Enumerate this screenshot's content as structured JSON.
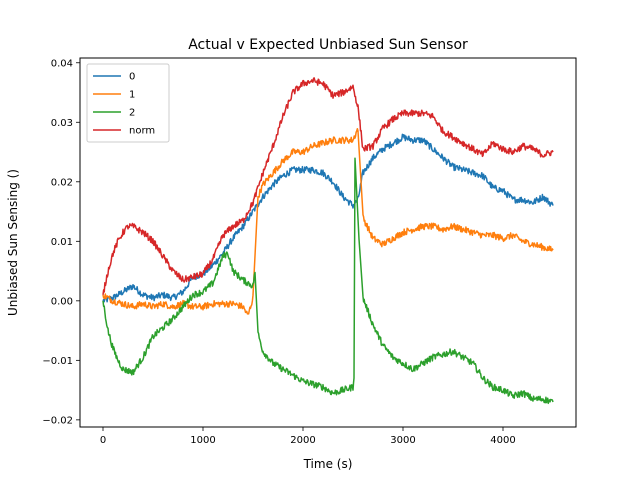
{
  "chart_data": {
    "type": "line",
    "title": "Actual v Expected Unbiased Sun Sensor",
    "xlabel": "Time (s)",
    "ylabel": "Unbiased Sun Sensing ()",
    "xlim": [
      -230,
      4730
    ],
    "ylim": [
      -0.0212,
      0.0408
    ],
    "xticks": [
      0,
      1000,
      2000,
      3000,
      4000
    ],
    "xtick_labels": [
      "0",
      "1000",
      "2000",
      "3000",
      "4000"
    ],
    "yticks": [
      -0.02,
      -0.01,
      0.0,
      0.01,
      0.02,
      0.03,
      0.04
    ],
    "ytick_labels": [
      "−0.02",
      "−0.01",
      "0.00",
      "0.01",
      "0.02",
      "0.03",
      "0.04"
    ],
    "grid": false,
    "legend_position": "top-left",
    "series": [
      {
        "name": "0",
        "color": "#1f77b4",
        "x": [
          0,
          100,
          200,
          300,
          400,
          500,
          600,
          700,
          800,
          900,
          1000,
          1100,
          1200,
          1300,
          1400,
          1500,
          1600,
          1700,
          1800,
          1900,
          2000,
          2100,
          2200,
          2300,
          2400,
          2500,
          2550,
          2600,
          2700,
          2800,
          2900,
          3000,
          3100,
          3200,
          3300,
          3400,
          3500,
          3600,
          3700,
          3800,
          3900,
          4000,
          4100,
          4200,
          4300,
          4400,
          4500
        ],
        "y": [
          0.0,
          0.0005,
          0.0015,
          0.0025,
          0.001,
          0.0005,
          0.001,
          0.0005,
          0.0015,
          0.004,
          0.0045,
          0.006,
          0.008,
          0.0105,
          0.0125,
          0.015,
          0.0175,
          0.0195,
          0.021,
          0.022,
          0.022,
          0.022,
          0.0215,
          0.02,
          0.0175,
          0.016,
          0.017,
          0.0215,
          0.024,
          0.0255,
          0.0265,
          0.0275,
          0.027,
          0.027,
          0.0255,
          0.024,
          0.0225,
          0.022,
          0.0215,
          0.021,
          0.019,
          0.0185,
          0.017,
          0.017,
          0.0165,
          0.0175,
          0.016
        ]
      },
      {
        "name": "1",
        "color": "#ff7f0e",
        "x": [
          0,
          100,
          200,
          300,
          400,
          500,
          600,
          700,
          800,
          900,
          1000,
          1100,
          1200,
          1300,
          1400,
          1450,
          1500,
          1550,
          1600,
          1700,
          1800,
          1900,
          2000,
          2100,
          2200,
          2300,
          2400,
          2500,
          2550,
          2600,
          2700,
          2800,
          2900,
          3000,
          3100,
          3200,
          3300,
          3400,
          3500,
          3600,
          3700,
          3800,
          3900,
          4000,
          4100,
          4200,
          4300,
          4400,
          4500
        ],
        "y": [
          0.001,
          0.0,
          -0.0005,
          -0.001,
          -0.0005,
          -0.001,
          -0.0005,
          -0.001,
          -0.0005,
          -0.001,
          -0.001,
          -0.0005,
          -0.0005,
          -0.0005,
          -0.001,
          -0.0025,
          0.0005,
          0.0175,
          0.0195,
          0.0215,
          0.0235,
          0.025,
          0.025,
          0.026,
          0.0265,
          0.027,
          0.027,
          0.027,
          0.029,
          0.014,
          0.0105,
          0.0095,
          0.0105,
          0.0115,
          0.012,
          0.0125,
          0.0125,
          0.012,
          0.0125,
          0.012,
          0.0115,
          0.011,
          0.011,
          0.0105,
          0.011,
          0.01,
          0.0095,
          0.009,
          0.0085
        ]
      },
      {
        "name": "2",
        "color": "#2ca02c",
        "x": [
          0,
          50,
          100,
          150,
          200,
          300,
          400,
          500,
          600,
          700,
          800,
          900,
          1000,
          1100,
          1200,
          1250,
          1300,
          1400,
          1500,
          1520,
          1550,
          1600,
          1700,
          1800,
          1900,
          2000,
          2100,
          2200,
          2300,
          2400,
          2500,
          2510,
          2520,
          2560,
          2600,
          2700,
          2800,
          2900,
          3000,
          3100,
          3200,
          3300,
          3400,
          3500,
          3600,
          3700,
          3800,
          3900,
          4000,
          4100,
          4200,
          4300,
          4400,
          4500
        ],
        "y": [
          0.0,
          -0.005,
          -0.008,
          -0.01,
          -0.0115,
          -0.012,
          -0.0095,
          -0.006,
          -0.0045,
          -0.003,
          -0.001,
          0.001,
          0.0015,
          0.003,
          0.0075,
          0.008,
          0.005,
          0.0035,
          0.0025,
          0.005,
          -0.0055,
          -0.0085,
          -0.0105,
          -0.0115,
          -0.0125,
          -0.0135,
          -0.014,
          -0.0145,
          -0.0155,
          -0.015,
          -0.0145,
          -0.0125,
          0.024,
          0.01,
          0.0005,
          -0.004,
          -0.0075,
          -0.0095,
          -0.0105,
          -0.0115,
          -0.0105,
          -0.0095,
          -0.009,
          -0.0085,
          -0.0095,
          -0.0105,
          -0.013,
          -0.0145,
          -0.015,
          -0.016,
          -0.0155,
          -0.0165,
          -0.0165,
          -0.017
        ]
      },
      {
        "name": "norm",
        "color": "#d62728",
        "x": [
          0,
          50,
          100,
          150,
          200,
          250,
          300,
          400,
          500,
          600,
          700,
          800,
          900,
          1000,
          1100,
          1200,
          1300,
          1400,
          1500,
          1600,
          1700,
          1800,
          1900,
          2000,
          2100,
          2200,
          2300,
          2400,
          2500,
          2550,
          2600,
          2700,
          2800,
          2900,
          3000,
          3100,
          3200,
          3300,
          3400,
          3500,
          3600,
          3700,
          3800,
          3900,
          4000,
          4100,
          4200,
          4300,
          4400,
          4500
        ],
        "y": [
          0.001,
          0.005,
          0.008,
          0.01,
          0.0115,
          0.0125,
          0.0125,
          0.0115,
          0.01,
          0.0075,
          0.005,
          0.0035,
          0.004,
          0.0045,
          0.007,
          0.011,
          0.0125,
          0.0135,
          0.0165,
          0.0215,
          0.026,
          0.031,
          0.035,
          0.0365,
          0.037,
          0.0365,
          0.0345,
          0.035,
          0.036,
          0.0325,
          0.0255,
          0.026,
          0.029,
          0.0305,
          0.0315,
          0.0315,
          0.0315,
          0.031,
          0.0285,
          0.0275,
          0.0265,
          0.0255,
          0.0245,
          0.0265,
          0.0255,
          0.025,
          0.026,
          0.0255,
          0.0245,
          0.025
        ]
      }
    ]
  }
}
